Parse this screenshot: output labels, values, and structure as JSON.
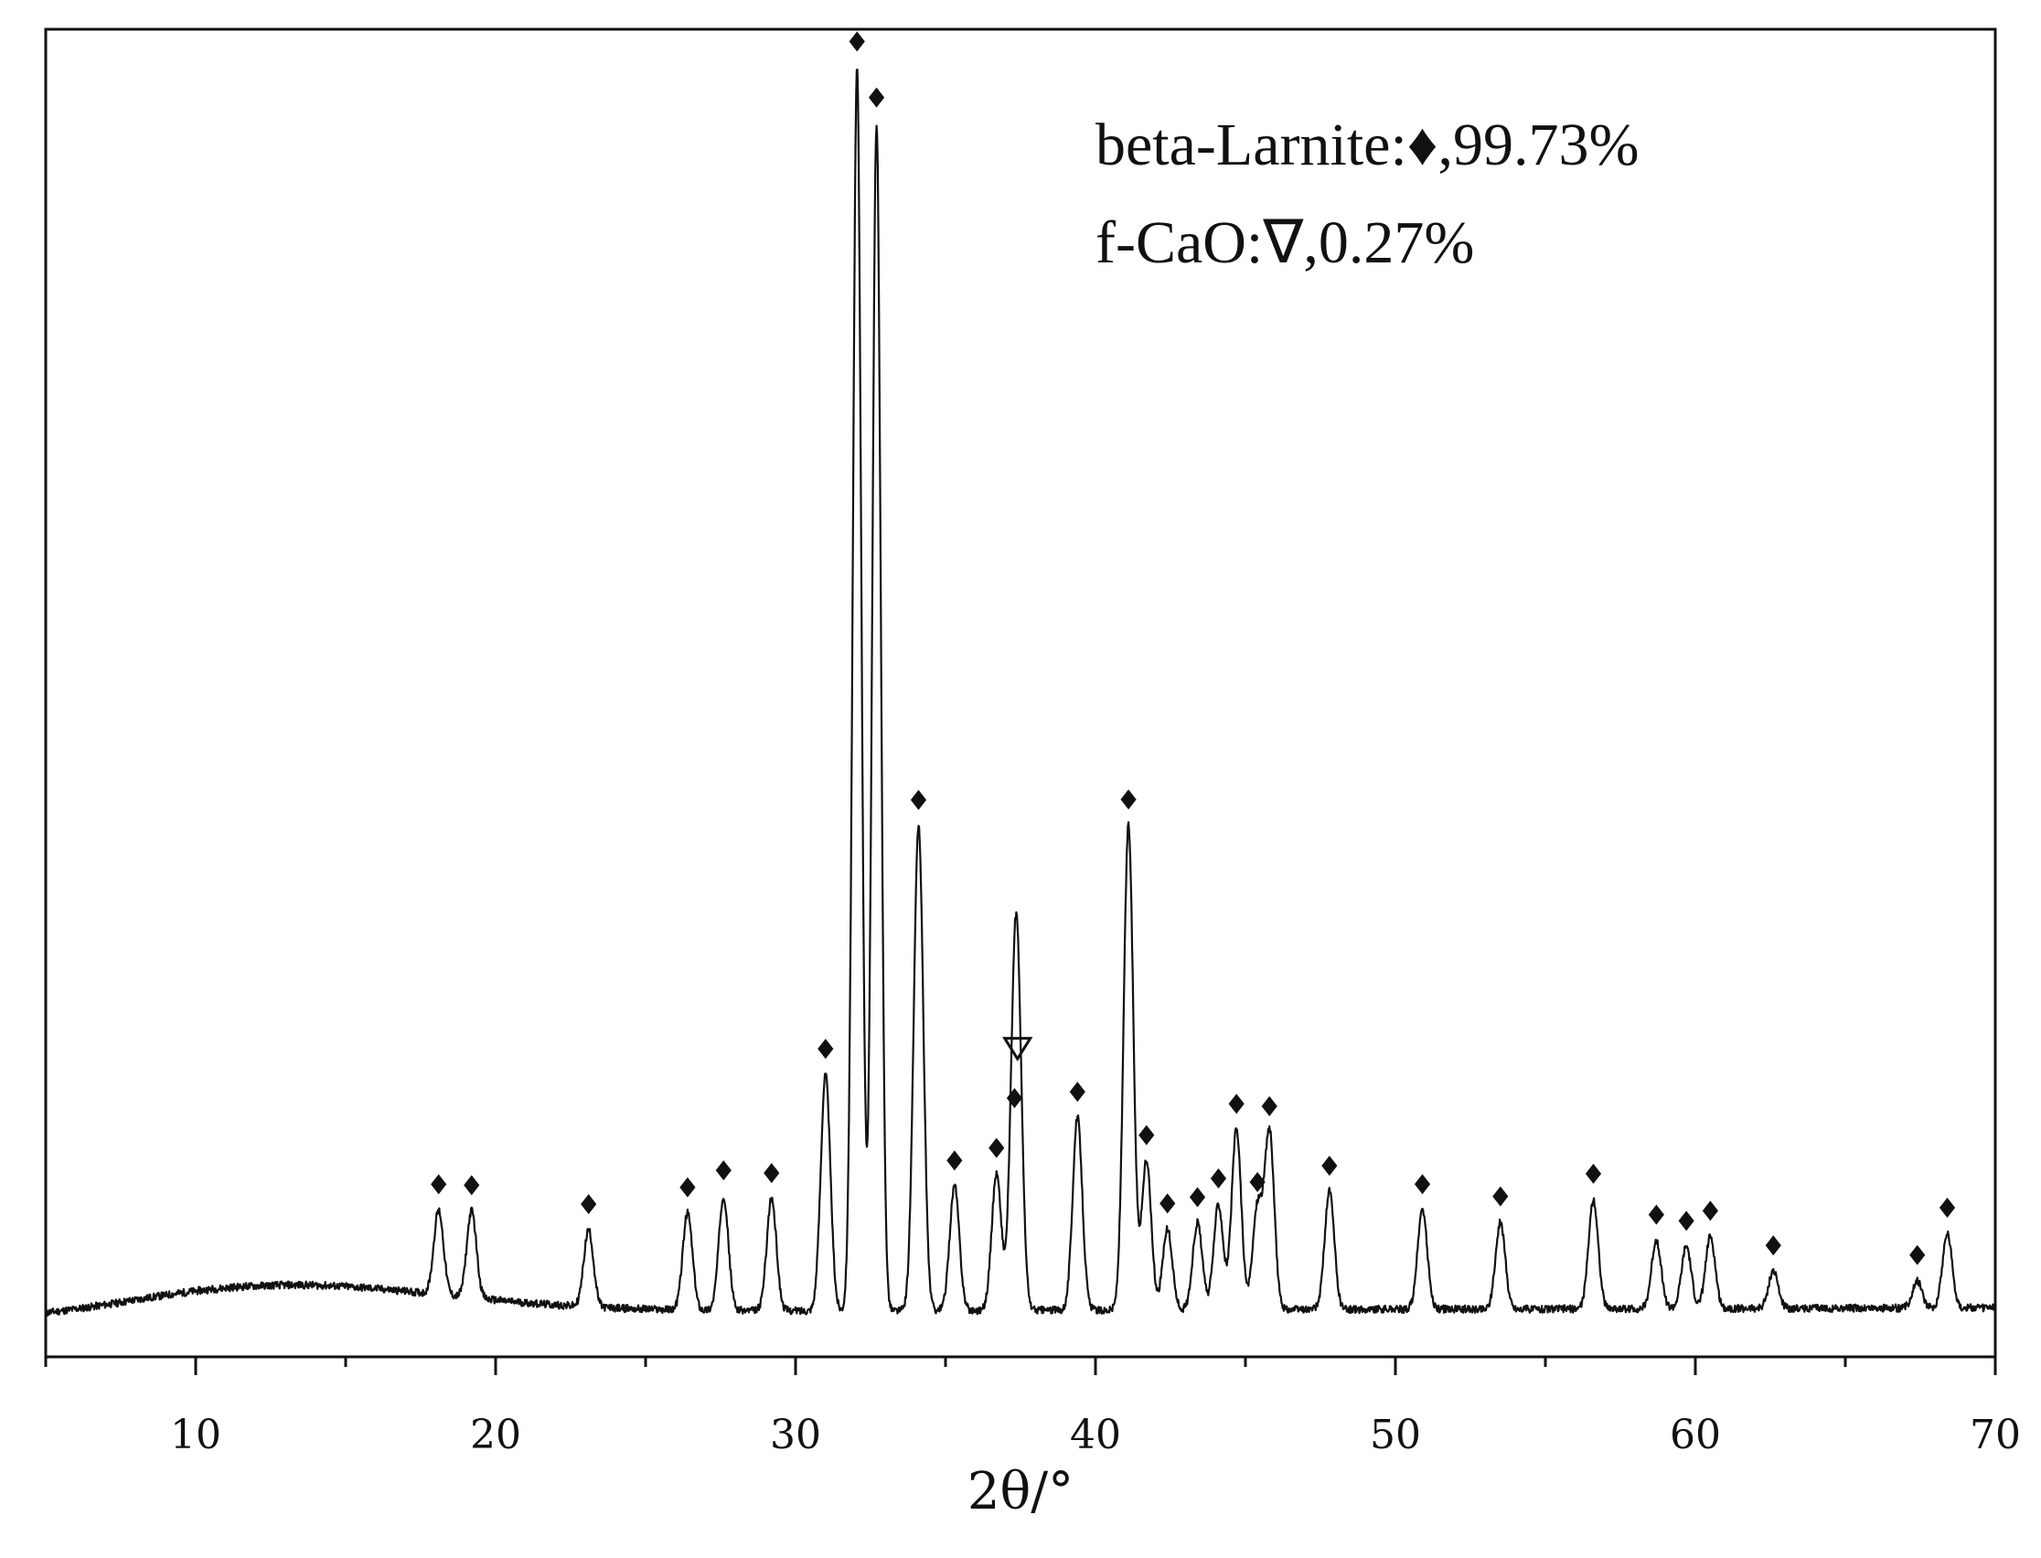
{
  "chart_data": {
    "type": "line",
    "xlabel": "2θ/°",
    "ylabel": "",
    "xlim": [
      5,
      70
    ],
    "ylim": [
      0,
      1050
    ],
    "y_ticks_shown": false,
    "grid": false,
    "x_ticks": [
      10,
      20,
      30,
      40,
      50,
      60,
      70
    ],
    "x_minor_step": 5,
    "legend_position": "top-right",
    "legend": [
      {
        "text": "beta-Larnite:♦,99.73%",
        "marker": "diamond"
      },
      {
        "text": "f-CaO:∇,0.27%",
        "marker": "triangle-down-open"
      }
    ],
    "series": [
      {
        "phase": "beta-Larnite",
        "marker": "diamond",
        "peaks": [
          {
            "x": 18.1,
            "y": 68
          },
          {
            "x": 19.2,
            "y": 70
          },
          {
            "x": 23.1,
            "y": 62
          },
          {
            "x": 26.4,
            "y": 78
          },
          {
            "x": 27.6,
            "y": 92
          },
          {
            "x": 29.2,
            "y": 90
          },
          {
            "x": 31.0,
            "y": 190
          },
          {
            "x": 32.05,
            "y": 1000
          },
          {
            "x": 32.7,
            "y": 955
          },
          {
            "x": 34.1,
            "y": 390
          },
          {
            "x": 35.3,
            "y": 100
          },
          {
            "x": 36.7,
            "y": 110
          },
          {
            "x": 37.3,
            "y": 150
          },
          {
            "x": 39.4,
            "y": 155
          },
          {
            "x": 41.1,
            "y": 390
          },
          {
            "x": 41.7,
            "y": 120
          },
          {
            "x": 42.4,
            "y": 65
          },
          {
            "x": 43.4,
            "y": 70
          },
          {
            "x": 44.1,
            "y": 85
          },
          {
            "x": 44.7,
            "y": 145
          },
          {
            "x": 45.4,
            "y": 82
          },
          {
            "x": 45.8,
            "y": 143
          },
          {
            "x": 47.8,
            "y": 95
          },
          {
            "x": 50.9,
            "y": 80
          },
          {
            "x": 53.5,
            "y": 70
          },
          {
            "x": 56.6,
            "y": 88
          },
          {
            "x": 58.7,
            "y": 55
          },
          {
            "x": 59.7,
            "y": 50
          },
          {
            "x": 60.5,
            "y": 58
          },
          {
            "x": 62.6,
            "y": 30
          },
          {
            "x": 67.4,
            "y": 22
          },
          {
            "x": 68.4,
            "y": 60
          }
        ]
      },
      {
        "phase": "f-CaO",
        "marker": "triangle-down-open",
        "peaks": [
          {
            "x": 37.4,
            "y": 185
          }
        ]
      }
    ]
  }
}
